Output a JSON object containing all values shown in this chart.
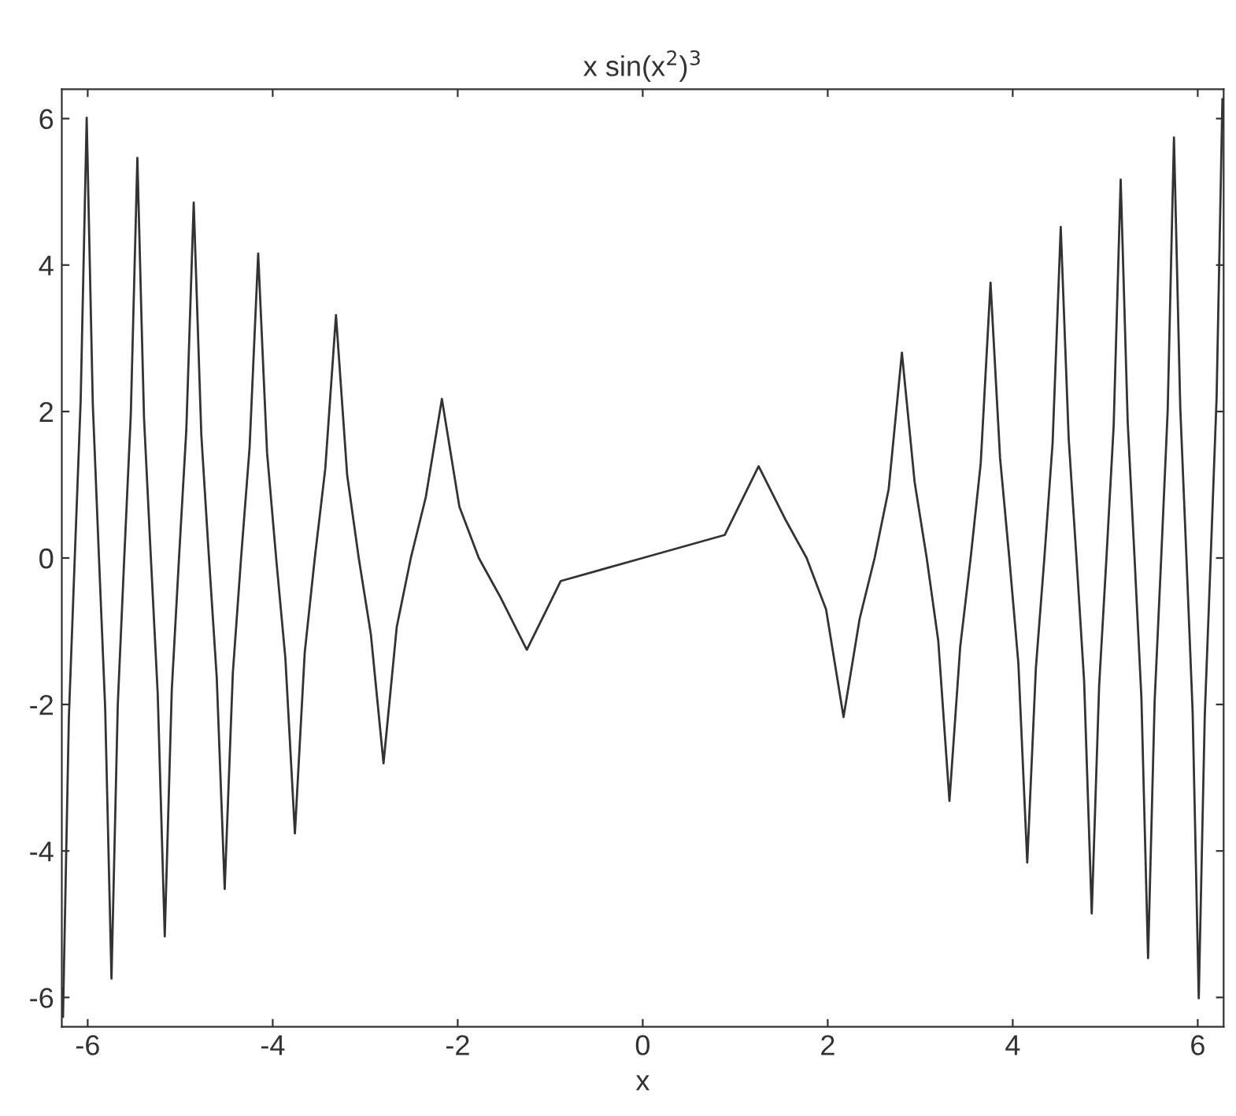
{
  "chart_data": {
    "type": "line",
    "title": "x sin(x$^{2}$)$^{3}$",
    "xlabel": "x",
    "xlim": [
      -6.28,
      6.28
    ],
    "ylim": [
      -6.4,
      6.4
    ],
    "xticks": [
      -6,
      -4,
      -2,
      0,
      2,
      4,
      6
    ],
    "yticks": [
      -6,
      -4,
      -2,
      0,
      2,
      4,
      6
    ],
    "grid": false,
    "legend": false,
    "marker": "none",
    "line_style": "solid",
    "series": [
      {
        "color": "#333333",
        "x": [
          -6.28,
          -6.267,
          -6.204,
          -6.14,
          -6.076,
          -6.011,
          -5.945,
          -5.878,
          -5.811,
          -5.743,
          -5.675,
          -5.605,
          -5.534,
          -5.463,
          -5.391,
          -5.317,
          -5.243,
          -5.167,
          -5.091,
          -5.013,
          -4.934,
          -4.854,
          -4.772,
          -4.689,
          -4.605,
          -4.519,
          -4.431,
          -4.342,
          -4.25,
          -4.157,
          -4.061,
          -3.963,
          -3.863,
          -3.76,
          -3.654,
          -3.545,
          -3.432,
          -3.316,
          -3.195,
          -3.07,
          -2.939,
          -2.802,
          -2.659,
          -2.507,
          -2.345,
          -2.171,
          -1.982,
          -1.772,
          -1.535,
          -1.253,
          -0.886,
          0,
          0.886,
          1.253,
          1.535,
          1.772,
          1.982,
          2.171,
          2.345,
          2.507,
          2.659,
          2.802,
          2.939,
          3.07,
          3.195,
          3.316,
          3.432,
          3.545,
          3.654,
          3.76,
          3.863,
          3.963,
          4.061,
          4.157,
          4.25,
          4.342,
          4.431,
          4.519,
          4.605,
          4.689,
          4.772,
          4.854,
          4.934,
          5.013,
          5.091,
          5.167,
          5.243,
          5.317,
          5.391,
          5.463,
          5.534,
          5.605,
          5.675,
          5.743,
          5.811,
          5.878,
          5.945,
          6.011,
          6.076,
          6.14,
          6.204,
          6.267,
          6.28
        ],
        "values": [
          -5.88,
          -6.267,
          -2.196,
          0,
          2.151,
          6.011,
          2.105,
          0,
          -2.057,
          -5.743,
          -2.009,
          0,
          1.959,
          5.463,
          1.908,
          0,
          -1.856,
          -5.167,
          -1.802,
          0,
          1.747,
          4.854,
          1.689,
          0,
          -1.63,
          -4.519,
          -1.569,
          0,
          1.505,
          4.157,
          1.438,
          0,
          -1.368,
          -3.76,
          -1.293,
          0,
          1.215,
          3.316,
          1.131,
          0,
          -1.04,
          -2.802,
          -0.941,
          0,
          0.83,
          2.171,
          0.702,
          0,
          -0.543,
          -1.253,
          -0.314,
          0,
          0.314,
          1.253,
          0.543,
          0,
          -0.702,
          -2.171,
          -0.83,
          0,
          0.941,
          2.802,
          1.04,
          0,
          -1.131,
          -3.316,
          -1.215,
          0,
          1.293,
          3.76,
          1.368,
          0,
          -1.438,
          -4.157,
          -1.505,
          0,
          1.569,
          4.519,
          1.63,
          0,
          -1.689,
          -4.854,
          -1.747,
          0,
          1.802,
          5.167,
          1.856,
          0,
          -1.908,
          -5.463,
          -1.959,
          0,
          2.009,
          5.743,
          2.057,
          0,
          -2.105,
          -6.011,
          -2.151,
          0,
          2.196,
          6.267,
          5.88
        ]
      }
    ]
  }
}
